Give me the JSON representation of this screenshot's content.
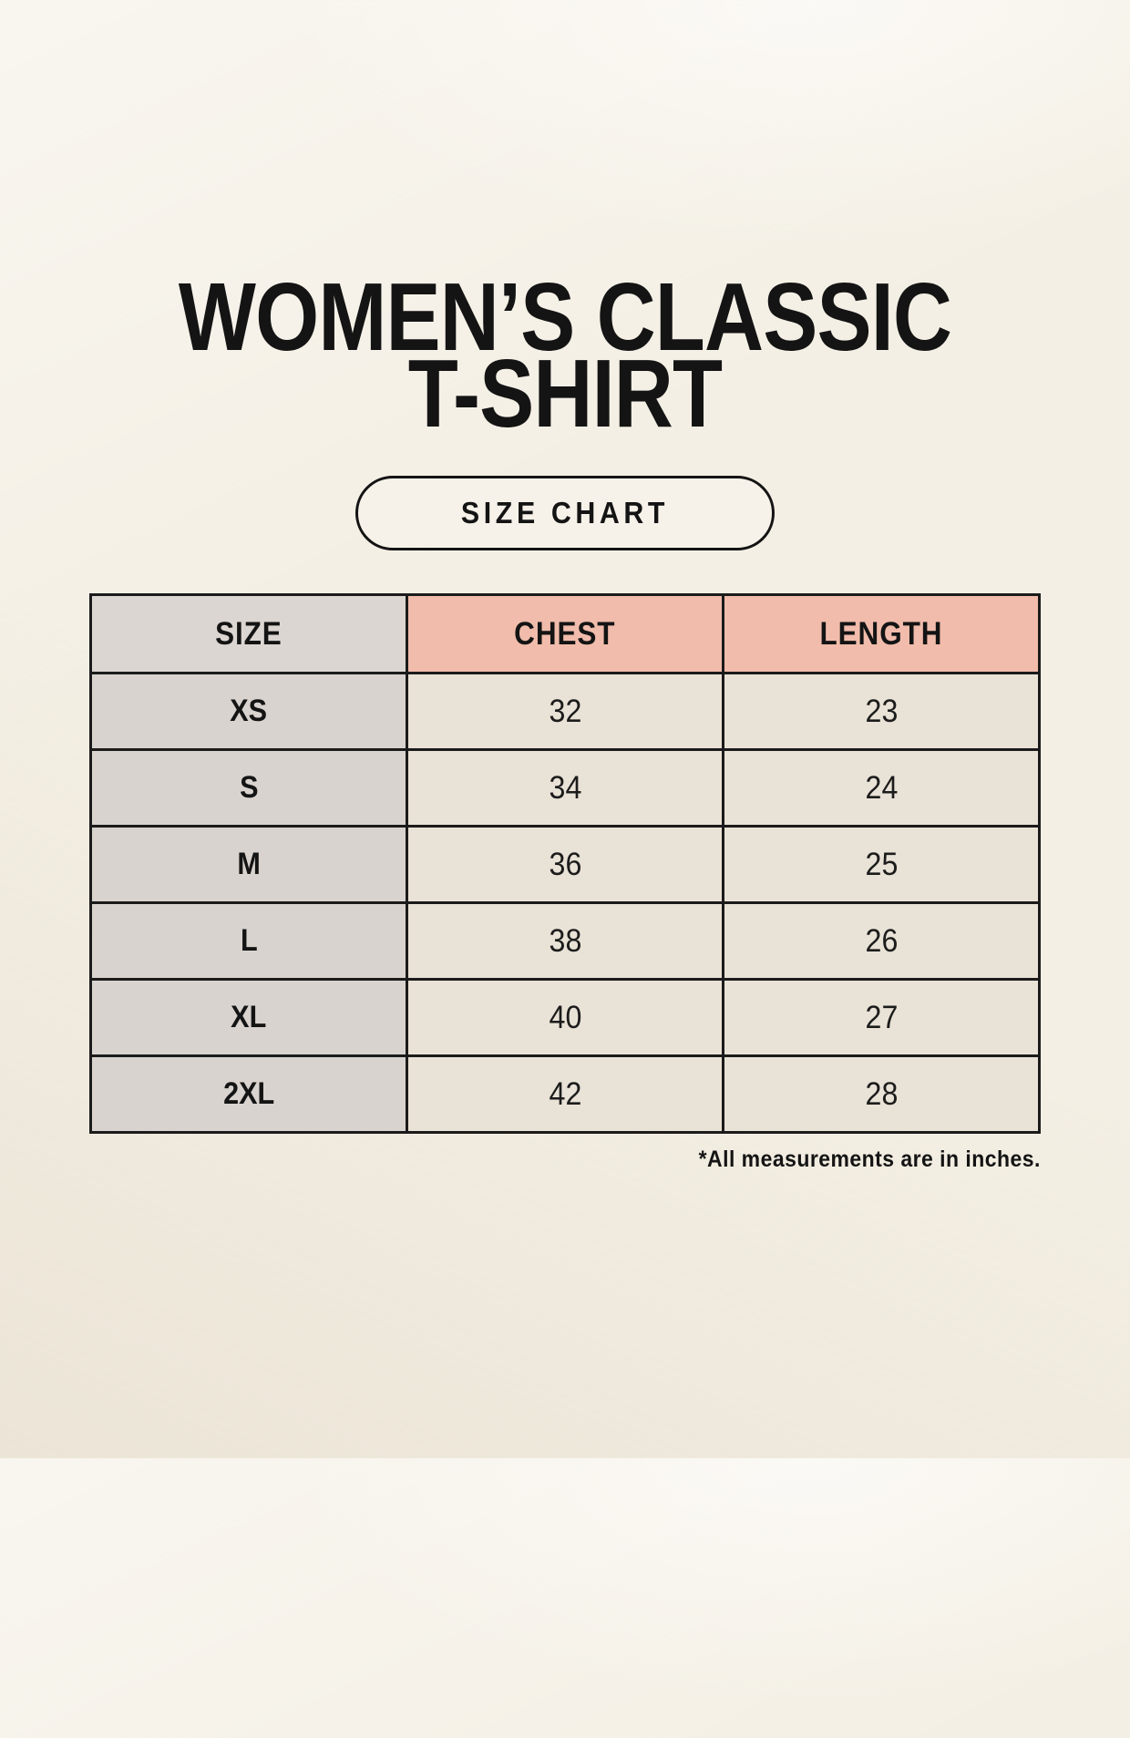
{
  "title": {
    "line1": "WOMEN’S CLASSIC",
    "line2": "T-SHIRT"
  },
  "size_chart_button": {
    "label": "SIZE CHART"
  },
  "table": {
    "columns": [
      "SIZE",
      "CHEST",
      "LENGTH"
    ],
    "rows": [
      {
        "size": "XS",
        "chest": "32",
        "length": "23"
      },
      {
        "size": "S",
        "chest": "34",
        "length": "24"
      },
      {
        "size": "M",
        "chest": "36",
        "length": "25"
      },
      {
        "size": "L",
        "chest": "38",
        "length": "26"
      },
      {
        "size": "XL",
        "chest": "40",
        "length": "27"
      },
      {
        "size": "2XL",
        "chest": "42",
        "length": "28"
      }
    ]
  },
  "footnote": "*All measurements are in inches.",
  "colors": {
    "background": "#f4efe4",
    "header_size_bg": "#dcd6d2",
    "header_measure_bg": "#f1bcab",
    "row_label_bg": "#d9d3cf",
    "value_cell_bg": "#e9e2d6",
    "border": "#1b1b1b",
    "text": "#141414"
  }
}
